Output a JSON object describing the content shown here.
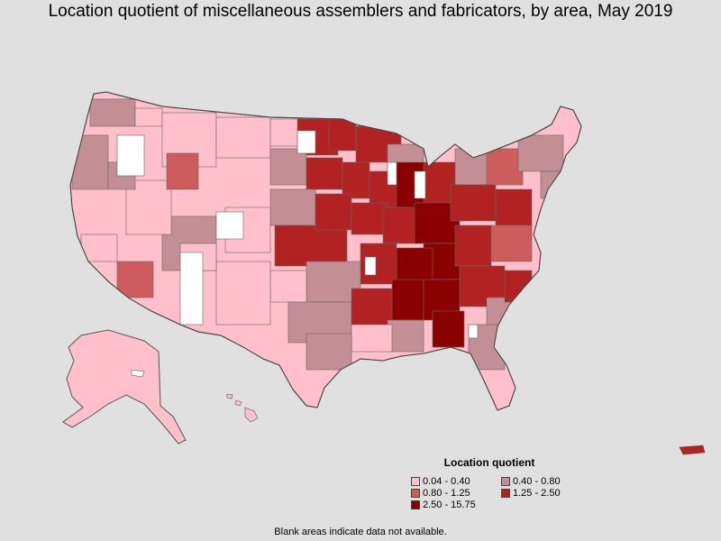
{
  "title": "Location quotient of miscellaneous assemblers and fabricators, by area, May 2019",
  "legend": {
    "title": "Location quotient",
    "items": [
      {
        "label": "0.04 - 0.40",
        "color": "#ffc0cb"
      },
      {
        "label": "0.40 - 0.80",
        "color": "#c48f94"
      },
      {
        "label": "0.80 - 1.25",
        "color": "#cd5c5c"
      },
      {
        "label": "1.25 - 2.50",
        "color": "#b22222"
      },
      {
        "label": "2.50 - 15.75",
        "color": "#8b0000"
      }
    ]
  },
  "no_data_color": "#ffffff",
  "background_color": "#e0e0e0",
  "footnote": "Blank areas indicate data not available."
}
